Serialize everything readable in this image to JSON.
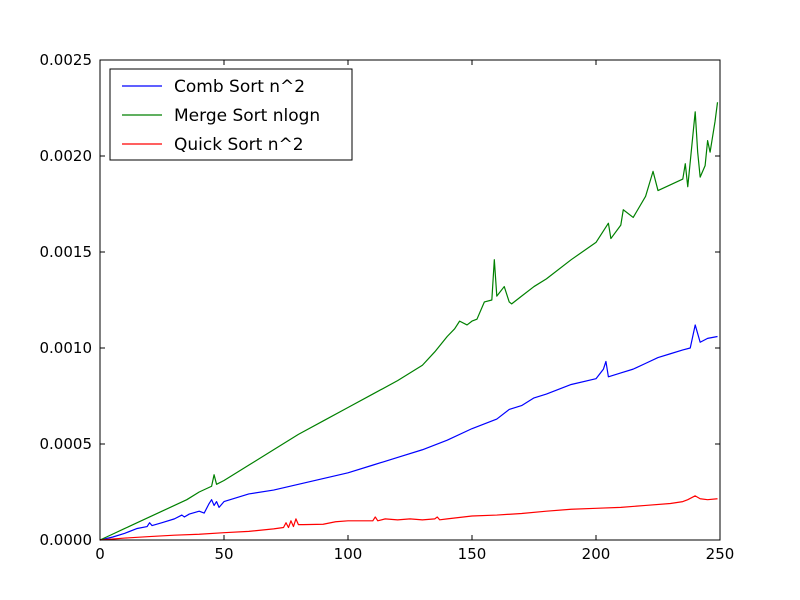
{
  "chart_data": {
    "type": "line",
    "title": "",
    "xlabel": "",
    "ylabel": "",
    "xlim": [
      0,
      250
    ],
    "ylim": [
      0,
      0.0025
    ],
    "grid": false,
    "legend_position": "top-left",
    "x_ticks": [
      "0",
      "50",
      "100",
      "150",
      "200",
      "250"
    ],
    "y_ticks": [
      "0.0000",
      "0.0005",
      "0.0010",
      "0.0015",
      "0.0020",
      "0.0025"
    ],
    "x_tick_values": [
      0,
      50,
      100,
      150,
      200,
      250
    ],
    "y_tick_values": [
      0,
      0.0005,
      0.001,
      0.0015,
      0.002,
      0.0025
    ],
    "series": [
      {
        "name": "Comb Sort n^2",
        "color": "#0000ff",
        "x": [
          0,
          5,
          10,
          15,
          19,
          20,
          21,
          25,
          30,
          33,
          34,
          36,
          40,
          42,
          44,
          45,
          46,
          47,
          48,
          50,
          60,
          70,
          80,
          90,
          100,
          110,
          120,
          130,
          140,
          150,
          160,
          165,
          170,
          175,
          180,
          190,
          200,
          203,
          204,
          205,
          210,
          215,
          220,
          225,
          230,
          235,
          238,
          240,
          242,
          245,
          249
        ],
        "y": [
          0,
          1.5e-05,
          3.5e-05,
          6e-05,
          7e-05,
          9e-05,
          7.5e-05,
          9e-05,
          0.00011,
          0.00013,
          0.00012,
          0.000135,
          0.00015,
          0.00014,
          0.00019,
          0.00021,
          0.00018,
          0.0002,
          0.00017,
          0.0002,
          0.00024,
          0.00026,
          0.00029,
          0.00032,
          0.00035,
          0.00039,
          0.00043,
          0.00047,
          0.00052,
          0.00058,
          0.00063,
          0.00068,
          0.0007,
          0.00074,
          0.00076,
          0.00081,
          0.00084,
          0.00089,
          0.00093,
          0.00085,
          0.00087,
          0.00089,
          0.00092,
          0.00095,
          0.00097,
          0.00099,
          0.001,
          0.00112,
          0.00103,
          0.00105,
          0.00106
        ]
      },
      {
        "name": "Merge Sort nlogn",
        "color": "#008000",
        "x": [
          0,
          5,
          10,
          15,
          20,
          25,
          30,
          35,
          40,
          45,
          46,
          47,
          50,
          60,
          70,
          80,
          90,
          100,
          110,
          120,
          130,
          135,
          140,
          143,
          145,
          148,
          150,
          152,
          155,
          158,
          159,
          160,
          163,
          165,
          166,
          170,
          175,
          180,
          190,
          200,
          205,
          206,
          210,
          211,
          215,
          220,
          223,
          225,
          230,
          235,
          236,
          237,
          240,
          241,
          242,
          244,
          245,
          246,
          248,
          249
        ],
        "y": [
          0,
          3e-05,
          6e-05,
          9e-05,
          0.00012,
          0.00015,
          0.00018,
          0.00021,
          0.00025,
          0.00028,
          0.00034,
          0.00029,
          0.00031,
          0.00039,
          0.00047,
          0.00055,
          0.00062,
          0.00069,
          0.00076,
          0.00083,
          0.00091,
          0.00098,
          0.00106,
          0.0011,
          0.00114,
          0.00112,
          0.00114,
          0.00115,
          0.00124,
          0.00125,
          0.00146,
          0.00127,
          0.00132,
          0.00124,
          0.00123,
          0.00127,
          0.00132,
          0.00136,
          0.00146,
          0.00155,
          0.00165,
          0.00157,
          0.00164,
          0.00172,
          0.00168,
          0.00179,
          0.00192,
          0.00182,
          0.00185,
          0.00188,
          0.00196,
          0.00184,
          0.00223,
          0.00202,
          0.00189,
          0.00195,
          0.00208,
          0.00202,
          0.00218,
          0.00228
        ]
      },
      {
        "name": "Quick Sort n^2",
        "color": "#ff0000",
        "x": [
          0,
          10,
          20,
          30,
          40,
          50,
          60,
          70,
          74,
          75,
          76,
          77,
          78,
          79,
          80,
          82,
          90,
          95,
          100,
          110,
          111,
          112,
          115,
          120,
          125,
          130,
          135,
          136,
          137,
          140,
          150,
          160,
          170,
          180,
          190,
          200,
          210,
          220,
          230,
          235,
          237,
          240,
          242,
          245,
          249
        ],
        "y": [
          0,
          1e-05,
          1.8e-05,
          2.5e-05,
          3e-05,
          3.8e-05,
          4.5e-05,
          5.8e-05,
          6.5e-05,
          9e-05,
          6.5e-05,
          0.0001,
          7e-05,
          0.00011,
          8e-05,
          8e-05,
          8.2e-05,
          9.5e-05,
          0.0001,
          0.0001,
          0.00012,
          0.0001,
          0.00011,
          0.000105,
          0.00011,
          0.000105,
          0.00011,
          0.00012,
          0.000105,
          0.00011,
          0.000125,
          0.00013,
          0.000138,
          0.00015,
          0.00016,
          0.000165,
          0.00017,
          0.00018,
          0.00019,
          0.0002,
          0.00021,
          0.00023,
          0.000215,
          0.00021,
          0.000215
        ]
      }
    ]
  }
}
